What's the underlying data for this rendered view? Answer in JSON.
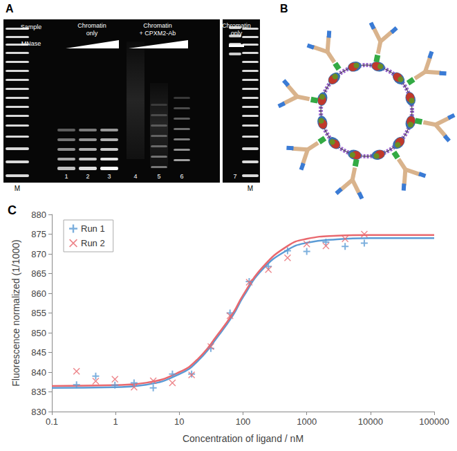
{
  "panel_a": {
    "label": "A",
    "row_labels": [
      "Sample",
      "MNase"
    ],
    "groups": [
      {
        "label": [
          "Chromatin",
          "only"
        ],
        "lanes": [
          "1",
          "2",
          "3"
        ]
      },
      {
        "label": [
          "Chromatin",
          "+ CPXM2-Ab"
        ],
        "lanes": [
          "4",
          "5",
          "6"
        ]
      },
      {
        "label": [
          "Chromatin",
          "only"
        ],
        "lanes": [
          "7"
        ]
      }
    ],
    "marker_lanes": [
      "M",
      "M"
    ]
  },
  "panel_b": {
    "label": "B"
  },
  "chart_data": {
    "type": "scatter",
    "title": "C",
    "x_label": "Concentration of ligand / nM",
    "y_label": "Fluorescence normalized (1/1000)",
    "log": "x",
    "grid": false,
    "legend": "upper left",
    "xlim": [
      0.1,
      100000
    ],
    "xticks": [
      0.1,
      1,
      10,
      100,
      1000,
      10000,
      100000
    ],
    "ylim": [
      830,
      880
    ],
    "yticks": [
      830,
      835,
      840,
      845,
      850,
      855,
      860,
      865,
      870,
      875,
      880
    ],
    "x": [
      0.244,
      0.488,
      0.977,
      1.95,
      3.9,
      7.8,
      15.6,
      31.25,
      62.5,
      125,
      250,
      500,
      1000,
      2000,
      4000,
      8000
    ],
    "series": [
      {
        "name": "Run 1",
        "color": "#5b9bd5",
        "marker": "plus",
        "line_style": "solid",
        "values": [
          836.8,
          839,
          836.7,
          837.3,
          836,
          839.5,
          839.5,
          846,
          855,
          863,
          866.8,
          870.8,
          870.6,
          873,
          871.9,
          872.7
        ],
        "fit": {
          "x": [
            0.1,
            1,
            3,
            10,
            20,
            40,
            70,
            100,
            200,
            500,
            1000,
            3000,
            10000,
            100000
          ],
          "values": [
            836,
            836.2,
            836.8,
            839.5,
            843,
            849,
            854.5,
            859,
            866,
            871,
            872.8,
            873.7,
            874,
            874
          ]
        }
      },
      {
        "name": "Run 2",
        "color": "#e9686e",
        "marker": "cross",
        "line_style": "solid",
        "values": [
          840.2,
          837.7,
          838.2,
          836.2,
          837.8,
          837.3,
          839.3,
          846.5,
          854.3,
          862.8,
          866,
          869,
          872.5,
          872,
          873.8,
          875
        ],
        "fit": {
          "x": [
            0.1,
            1,
            3,
            10,
            20,
            40,
            70,
            100,
            200,
            500,
            1000,
            3000,
            10000,
            100000
          ],
          "values": [
            836.5,
            836.7,
            837.3,
            840,
            843.5,
            849.5,
            855,
            859.5,
            866.5,
            872,
            873.8,
            874.6,
            874.8,
            874.8
          ]
        }
      }
    ]
  }
}
